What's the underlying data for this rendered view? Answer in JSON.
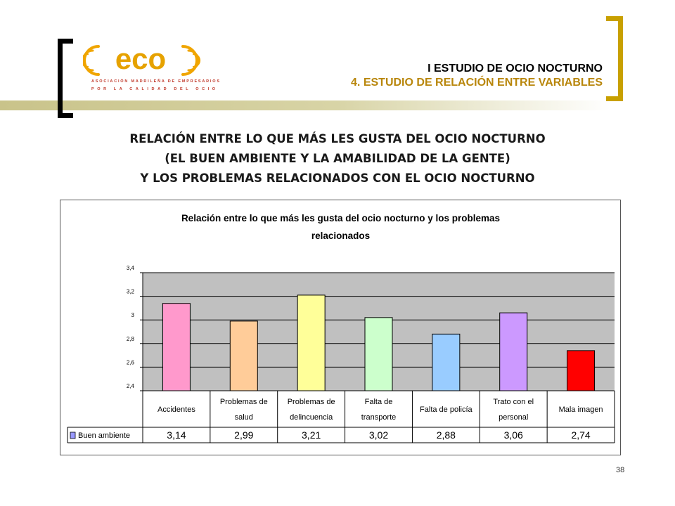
{
  "header": {
    "title_line1": "I ESTUDIO DE OCIO NOCTURNO",
    "title_line2": "4. ESTUDIO DE RELACIÓN ENTRE VARIABLES"
  },
  "logo": {
    "wordmark": "eco",
    "line1": "ASOCIACIÓN MADRILEÑA DE EMPRESARIOS",
    "line2": "POR LA CALIDAD DEL OCIO"
  },
  "main_title": {
    "line1": "RELACIÓN ENTRE LO QUE MÁS LES GUSTA DEL OCIO NOCTURNO",
    "line2": "(EL BUEN AMBIENTE Y LA AMABILIDAD DE LA GENTE)",
    "line3": "Y LOS PROBLEMAS RELACIONADOS CON EL OCIO NOCTURNO"
  },
  "chart_data": {
    "type": "bar",
    "title_line1": "Relación entre lo que más les gusta del ocio nocturno y los problemas",
    "title_line2": "relacionados",
    "categories": [
      [
        "Accidentes"
      ],
      [
        "Problemas de",
        "salud"
      ],
      [
        "Problemas de",
        "delincuencia"
      ],
      [
        "Falta de",
        "transporte"
      ],
      [
        "Falta de policía"
      ],
      [
        "Trato con el",
        "personal"
      ],
      [
        "Mala imagen"
      ]
    ],
    "series": [
      {
        "name": "Buen ambiente",
        "values": [
          3.14,
          2.99,
          3.21,
          3.02,
          2.88,
          3.06,
          2.74
        ],
        "color": "#9999ff"
      }
    ],
    "value_labels": [
      "3,14",
      "2,99",
      "3,21",
      "3,02",
      "2,88",
      "3,06",
      "2,74"
    ],
    "bar_colors": [
      "#ff99cc",
      "#ffcc99",
      "#ffff99",
      "#ccffcc",
      "#99ccff",
      "#cc99ff",
      "#ff0000"
    ],
    "ylim": [
      2.4,
      3.4
    ],
    "yticks": [
      2.4,
      2.6,
      2.8,
      3.0,
      3.2,
      3.4
    ],
    "ytick_labels": [
      "2,4",
      "2,6",
      "2,8",
      "3",
      "3,2",
      "3,4"
    ],
    "plot_background": "#c0c0c0",
    "grid": true,
    "legend": "data-table"
  },
  "page_number": "38"
}
